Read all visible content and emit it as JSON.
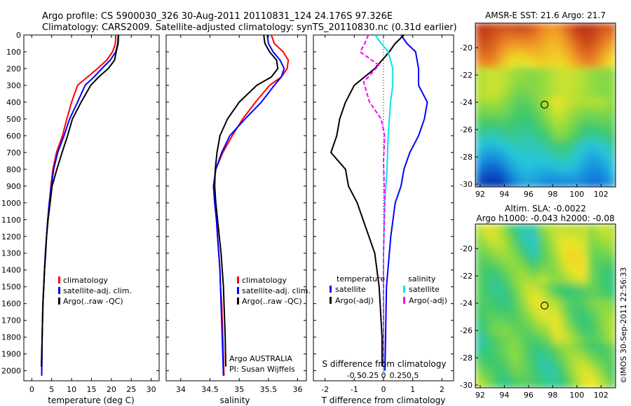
{
  "title_line1": "Argo profile: CS 5900030_326 30-Aug-2011 20110831_124 24.176S 97.326E",
  "title_line2": "Climatology: CARS2009. Satellite-adjusted climatology: synTS_20110830.nc (0.31d earlier)",
  "timestamp": "©IMOS 30-Sep-2011 22:56:33",
  "colors": {
    "climatology": "#ff0000",
    "satellite_adj": "#0000ff",
    "argo": "#000000",
    "salinity_satellite": "#00e5e5",
    "salinity_argo": "#ff00ff",
    "marker": "#000000"
  },
  "chart_data": [
    {
      "type": "line",
      "id": "temperature",
      "xlabel": "temperature (deg C)",
      "ylabel": "",
      "xlim": [
        -2,
        32
      ],
      "ylim": [
        2060,
        0
      ],
      "xticks": [
        0,
        5,
        10,
        15,
        20,
        25,
        30
      ],
      "yticks": [
        0,
        100,
        200,
        300,
        400,
        500,
        600,
        700,
        800,
        900,
        1000,
        1100,
        1200,
        1300,
        1400,
        1500,
        1600,
        1700,
        1800,
        1900,
        2000
      ],
      "legend": [
        "climatology",
        "satellite-adj. clim.",
        "Argo(..raw -QC)"
      ],
      "legend_position": "lower-center",
      "series": [
        {
          "name": "climatology",
          "color": "#ff0000",
          "x": [
            21.1,
            21.0,
            20.3,
            18.8,
            16.5,
            14.0,
            11.5,
            10.0,
            8.8,
            7.7,
            6.2,
            5.3,
            4.8,
            4.4,
            4.0,
            3.7,
            3.4,
            3.2,
            3.0,
            2.8,
            2.6,
            2.5
          ],
          "y": [
            0,
            50,
            100,
            150,
            200,
            250,
            300,
            400,
            500,
            600,
            700,
            800,
            900,
            1000,
            1100,
            1200,
            1300,
            1400,
            1500,
            1600,
            1800,
            2030
          ]
        },
        {
          "name": "satellite-adj. clim.",
          "color": "#0000ff",
          "x": [
            21.7,
            21.6,
            21.1,
            19.7,
            17.6,
            15.6,
            13.4,
            11.5,
            9.5,
            8.1,
            6.5,
            5.5,
            4.9,
            4.4,
            4.0,
            3.7,
            3.4,
            3.2,
            3.0,
            2.8,
            2.6,
            2.5
          ],
          "y": [
            0,
            50,
            100,
            150,
            200,
            250,
            300,
            400,
            500,
            600,
            700,
            800,
            900,
            1000,
            1100,
            1200,
            1300,
            1400,
            1500,
            1600,
            1800,
            2030
          ]
        },
        {
          "name": "Argo(..raw -QC)",
          "color": "#000000",
          "x": [
            21.8,
            21.7,
            21.2,
            20.8,
            19.2,
            16.8,
            14.8,
            12.4,
            10.2,
            9.0,
            7.6,
            6.3,
            5.1,
            4.6,
            4.1,
            3.7,
            3.5,
            3.2,
            3.0,
            2.8,
            2.6,
            2.4
          ],
          "y": [
            0,
            50,
            100,
            150,
            200,
            250,
            300,
            400,
            500,
            600,
            700,
            800,
            900,
            1000,
            1100,
            1200,
            1300,
            1400,
            1500,
            1600,
            1800,
            1975
          ]
        }
      ]
    },
    {
      "type": "line",
      "id": "salinity",
      "xlabel": "salinity",
      "xlim": [
        33.75,
        36.15
      ],
      "ylim": [
        2060,
        0
      ],
      "xticks": [
        34,
        34.5,
        35,
        35.5,
        36
      ],
      "legend": [
        "climatology",
        "satellite-adj. clim.",
        "Argo(..raw -QC)"
      ],
      "legend_position": "lower-center",
      "annotation": [
        "Argo AUSTRALIA",
        "PI: Susan Wijffels"
      ],
      "series": [
        {
          "name": "climatology",
          "color": "#ff0000",
          "x": [
            35.55,
            35.6,
            35.75,
            35.84,
            35.82,
            35.72,
            35.52,
            35.28,
            35.06,
            34.88,
            34.72,
            34.6,
            34.56,
            34.58,
            34.61,
            34.63,
            34.65,
            34.67,
            34.68,
            34.7,
            34.72,
            34.74
          ],
          "y": [
            0,
            50,
            100,
            150,
            200,
            250,
            300,
            400,
            500,
            600,
            700,
            800,
            900,
            1000,
            1100,
            1200,
            1300,
            1400,
            1500,
            1600,
            1800,
            2030
          ]
        },
        {
          "name": "satellite-adj. clim.",
          "color": "#0000ff",
          "x": [
            35.48,
            35.5,
            35.58,
            35.7,
            35.77,
            35.72,
            35.6,
            35.38,
            35.1,
            34.84,
            34.7,
            34.6,
            34.56,
            34.58,
            34.61,
            34.63,
            34.65,
            34.67,
            34.68,
            34.69,
            34.71,
            34.73
          ],
          "y": [
            0,
            50,
            100,
            150,
            200,
            250,
            300,
            400,
            500,
            600,
            700,
            800,
            900,
            1000,
            1100,
            1200,
            1300,
            1400,
            1500,
            1600,
            1800,
            2030
          ]
        },
        {
          "name": "Argo(..raw -QC)",
          "color": "#000000",
          "x": [
            35.42,
            35.44,
            35.52,
            35.64,
            35.66,
            35.55,
            35.3,
            35.0,
            34.8,
            34.67,
            34.62,
            34.59,
            34.58,
            34.6,
            34.63,
            34.66,
            34.69,
            34.71,
            34.73,
            34.74,
            34.76,
            34.77
          ],
          "y": [
            0,
            50,
            100,
            150,
            200,
            250,
            300,
            400,
            500,
            600,
            700,
            800,
            900,
            1000,
            1100,
            1200,
            1300,
            1400,
            1500,
            1600,
            1800,
            1975
          ]
        }
      ]
    },
    {
      "type": "line",
      "id": "difference",
      "xlabel": "T difference from climatology",
      "top_label": "S difference from climatology",
      "xlim": [
        -2.4,
        2.4
      ],
      "ylim": [
        2060,
        0
      ],
      "xticks": [
        -2,
        -1,
        0,
        1,
        2
      ],
      "top_xticks": [
        -0.5,
        -0.25,
        0,
        0.25,
        0.5
      ],
      "top_xtick_labels": [
        "-0.5",
        "-0.25",
        "0",
        "0.25",
        "0.5"
      ],
      "legend_groups": [
        {
          "header": "temperature",
          "items": [
            "satellite",
            "Argo(-adj)"
          ]
        },
        {
          "header": "salinity",
          "items": [
            "satellite",
            "Argo(-adj)"
          ]
        }
      ],
      "series": [
        {
          "name": "temperature satellite",
          "color": "#0000ff",
          "x": [
            0.6,
            0.8,
            1.1,
            1.2,
            1.2,
            1.5,
            1.4,
            1.2,
            0.9,
            0.7,
            0.6,
            0.4,
            0.25,
            0.1,
            0.05
          ],
          "y": [
            0,
            50,
            100,
            200,
            300,
            400,
            500,
            600,
            700,
            800,
            900,
            1000,
            1200,
            1500,
            2000
          ]
        },
        {
          "name": "temperature Argo(-adj)",
          "color": "#000000",
          "x": [
            0.7,
            0.4,
            0.2,
            -0.3,
            -1.0,
            -1.3,
            -1.5,
            -1.6,
            -1.8,
            -1.3,
            -1.2,
            -0.9,
            -0.7,
            -0.5,
            -0.3,
            -0.15,
            -0.05,
            -0.05
          ],
          "y": [
            0,
            50,
            100,
            200,
            300,
            400,
            500,
            600,
            700,
            800,
            900,
            1000,
            1100,
            1200,
            1300,
            1500,
            1800,
            1975
          ]
        },
        {
          "name": "salinity satellite",
          "color": "#00e5e5",
          "x": [
            -0.07,
            -0.02,
            0.04,
            0.08,
            0.08,
            0.06,
            0.04,
            0.03,
            0.01,
            0.0,
            0.0,
            0.0
          ],
          "y": [
            0,
            50,
            100,
            200,
            300,
            400,
            600,
            800,
            1000,
            1300,
            1600,
            2000
          ]
        },
        {
          "name": "salinity Argo(-adj)",
          "color": "#ff00ff",
          "x": [
            -0.13,
            -0.16,
            -0.2,
            -0.04,
            -0.17,
            -0.12,
            -0.02,
            0.01,
            0.0,
            0.01,
            0.0,
            0.0,
            0.0
          ],
          "y": [
            0,
            50,
            100,
            180,
            280,
            400,
            500,
            600,
            750,
            1000,
            1300,
            1600,
            1975
          ]
        }
      ]
    },
    {
      "type": "heatmap",
      "id": "sst_map",
      "title": "AMSR-E SST: 21.6 Argo: 21.7",
      "xlim": [
        91.6,
        103.2
      ],
      "ylim": [
        -30.2,
        -18.2
      ],
      "xticks": [
        92,
        94,
        96,
        98,
        100,
        102
      ],
      "yticks": [
        -20,
        -22,
        -24,
        -26,
        -28,
        -30
      ],
      "marker": {
        "lon": 97.326,
        "lat": -24.176
      }
    },
    {
      "type": "heatmap",
      "id": "sla_map",
      "title_line1": "Altim. SLA: -0.0022",
      "title_line2": "Argo h1000: -0.043 h2000: -0.08",
      "xlim": [
        91.6,
        103.2
      ],
      "ylim": [
        -30.2,
        -18.2
      ],
      "xticks": [
        92,
        94,
        96,
        98,
        100,
        102
      ],
      "yticks": [
        -20,
        -22,
        -24,
        -26,
        -28,
        -30
      ],
      "marker": {
        "lon": 97.326,
        "lat": -24.176
      }
    }
  ]
}
